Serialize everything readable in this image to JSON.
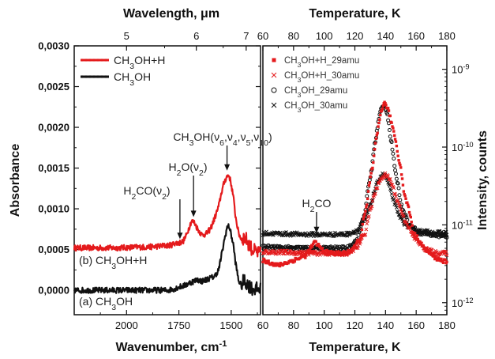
{
  "chart_data": [
    {
      "type": "line",
      "x_axis_bottom": {
        "label": "Wavenumber, cm",
        "label_superscript": "-1",
        "range": [
          2250,
          1360
        ],
        "ticks": [
          2000,
          1750,
          1500
        ],
        "tick_labels": [
          "2000",
          "1750",
          "1500"
        ]
      },
      "x_axis_top": {
        "label_prefix": "Wavelength, ",
        "label_unit": "μm",
        "ticks": [
          5,
          6,
          7
        ],
        "tick_labels": [
          "5",
          "6",
          "7"
        ]
      },
      "y_axis": {
        "label": "Absorbance",
        "range": [
          -0.0003,
          0.003
        ],
        "ticks": [
          0.0,
          0.0005,
          0.001,
          0.0015,
          0.002,
          0.0025,
          0.003
        ],
        "tick_labels": [
          "0,0000",
          "0,0005",
          "0,0010",
          "0,0015",
          "0,0020",
          "0,0025",
          "0,0030"
        ]
      },
      "legend": {
        "placement": "top-left",
        "entries": [
          {
            "base": "CH",
            "sub": "3",
            "rest": "OH+H",
            "color": "#e41a1c"
          },
          {
            "base": "CH",
            "sub": "3",
            "rest": "OH",
            "color": "#111111"
          }
        ]
      },
      "series": [
        {
          "name": "CH3OH+H",
          "color": "#e41a1c",
          "x": [
            2250,
            2150,
            2050,
            1950,
            1900,
            1850,
            1800,
            1780,
            1770,
            1750,
            1730,
            1715,
            1700,
            1690,
            1675,
            1660,
            1640,
            1620,
            1600,
            1580,
            1560,
            1545,
            1530,
            1520,
            1510,
            1500,
            1490,
            1480,
            1465,
            1450,
            1440,
            1430,
            1400,
            1370
          ],
          "y": [
            0.00052,
            0.00052,
            0.00052,
            0.00053,
            0.00053,
            0.00054,
            0.00055,
            0.00056,
            0.00058,
            0.00058,
            0.0006,
            0.00067,
            0.00078,
            0.00085,
            0.00083,
            0.00075,
            0.00068,
            0.00069,
            0.00075,
            0.00088,
            0.00103,
            0.00122,
            0.00135,
            0.0014,
            0.00141,
            0.0013,
            0.00115,
            0.00092,
            0.0007,
            0.00062,
            0.00065,
            0.00063,
            0.0005,
            0.00045
          ]
        },
        {
          "name": "CH3OH",
          "color": "#111111",
          "x": [
            2250,
            2150,
            2050,
            1950,
            1900,
            1850,
            1800,
            1770,
            1750,
            1720,
            1700,
            1680,
            1660,
            1640,
            1620,
            1600,
            1580,
            1560,
            1545,
            1530,
            1520,
            1510,
            1500,
            1490,
            1480,
            1465,
            1450,
            1440,
            1430,
            1400,
            1370
          ],
          "y": [
            0.0,
            0.0,
            0.0,
            0.0,
            0.0,
            0.0,
            0.0,
            2e-05,
            4e-05,
            6e-05,
            9e-05,
            0.00011,
            0.00013,
            0.00011,
            0.00013,
            0.00015,
            0.00017,
            0.00025,
            0.00045,
            0.00065,
            0.00077,
            0.00079,
            0.00068,
            0.00056,
            0.00035,
            0.00012,
            5e-05,
            0.00012,
            0.0001,
            2e-05,
            1e-05
          ]
        }
      ],
      "annotations": [
        {
          "parts": [
            [
              "t",
              "CH"
            ],
            [
              "sub",
              "3"
            ],
            [
              "t",
              "OH("
            ],
            [
              "t",
              "ν"
            ],
            [
              "sub",
              "6"
            ],
            [
              "t",
              ","
            ],
            [
              "t",
              "ν"
            ],
            [
              "sub",
              "4"
            ],
            [
              "t",
              ","
            ],
            [
              "t",
              "ν"
            ],
            [
              "sub",
              "5"
            ],
            [
              "t",
              ","
            ],
            [
              "t",
              "ν"
            ],
            [
              "sub",
              "10"
            ],
            [
              "t",
              ")"
            ]
          ],
          "x": 1520,
          "arrow_to_y": 0.00145
        },
        {
          "parts": [
            [
              "t",
              "H"
            ],
            [
              "sub",
              "2"
            ],
            [
              "t",
              "O("
            ],
            [
              "t",
              "ν"
            ],
            [
              "sub",
              "2"
            ],
            [
              "t",
              ")"
            ]
          ],
          "x": 1680,
          "arrow_to_y": 0.00088
        },
        {
          "parts": [
            [
              "t",
              "H"
            ],
            [
              "sub",
              "2"
            ],
            [
              "t",
              "CO("
            ],
            [
              "t",
              "ν"
            ],
            [
              "sub",
              "2"
            ],
            [
              "t",
              ")"
            ]
          ],
          "x": 1745,
          "arrow_to_y": 0.00061
        }
      ],
      "curve_labels": [
        {
          "parts": [
            [
              "t",
              "(b) CH"
            ],
            [
              "sub",
              "3"
            ],
            [
              "t",
              "OH+H"
            ]
          ],
          "series": "CH3OH+H"
        },
        {
          "parts": [
            [
              "t",
              "(a) CH"
            ],
            [
              "sub",
              "3"
            ],
            [
              "t",
              "OH"
            ]
          ],
          "series": "CH3OH"
        }
      ]
    },
    {
      "type": "scatter",
      "x_axis_bottom": {
        "label": "Temperature, K",
        "range": [
          60,
          180
        ],
        "ticks": [
          60,
          80,
          100,
          120,
          140,
          160,
          180
        ],
        "tick_labels": [
          "60",
          "80",
          "100",
          "120",
          "140",
          "160",
          "180"
        ]
      },
      "x_axis_top": {
        "label": "Temperature, K",
        "ticks": [
          60,
          80,
          100,
          120,
          140,
          160,
          180
        ],
        "tick_labels": [
          "60",
          "80",
          "100",
          "120",
          "140",
          "160",
          "180"
        ]
      },
      "y_axis": {
        "label": "Intensity, counts",
        "scale": "log",
        "range": [
          7e-13,
          2e-09
        ],
        "ticks": [
          1e-12,
          1e-11,
          1e-10,
          1e-09
        ],
        "tick_labels": [
          [
            "10",
            "-12"
          ],
          [
            "10",
            "-11"
          ],
          [
            "10",
            "-10"
          ],
          [
            "10",
            "-9"
          ]
        ]
      },
      "legend": {
        "placement": "top-left",
        "entries": [
          {
            "label": "CH3OH+H_29amu",
            "parts": [
              [
                "t",
                "CH"
              ],
              [
                "sub",
                "3"
              ],
              [
                "t",
                "OH+H_29amu"
              ]
            ],
            "marker": "filled-square",
            "color": "#e41a1c"
          },
          {
            "label": "CH3OH+H_30amu",
            "parts": [
              [
                "t",
                "CH"
              ],
              [
                "sub",
                "3"
              ],
              [
                "t",
                "OH+H_30amu"
              ]
            ],
            "marker": "cross",
            "color": "#e41a1c"
          },
          {
            "label": "CH3OH_29amu",
            "parts": [
              [
                "t",
                "CH"
              ],
              [
                "sub",
                "3"
              ],
              [
                "t",
                "OH_29amu"
              ]
            ],
            "marker": "open-circle",
            "color": "#111111"
          },
          {
            "label": "CH3OH_30amu",
            "parts": [
              [
                "t",
                "CH"
              ],
              [
                "sub",
                "3"
              ],
              [
                "t",
                "OH_30amu"
              ]
            ],
            "marker": "cross",
            "color": "#111111"
          }
        ]
      },
      "series": [
        {
          "name": "CH3OH+H_29amu",
          "color": "#e41a1c",
          "marker": "filled-square",
          "x": [
            60,
            70,
            80,
            88,
            94,
            100,
            110,
            118,
            124,
            128,
            132,
            135,
            137,
            139,
            141,
            144,
            148,
            152,
            158,
            165,
            172,
            180
          ],
          "y": [
            3.5e-12,
            3e-12,
            3.5e-12,
            4e-12,
            6e-12,
            4.5e-12,
            4.2e-12,
            4.5e-12,
            7e-12,
            1.8e-11,
            6e-11,
            1.6e-10,
            2.8e-10,
            3.7e-10,
            3.3e-10,
            2e-10,
            8e-11,
            2.5e-11,
            8e-12,
            5e-12,
            3.8e-12,
            3.3e-12
          ]
        },
        {
          "name": "CH3OH+H_30amu",
          "color": "#e41a1c",
          "marker": "cross",
          "x": [
            60,
            80,
            100,
            115,
            122,
            127,
            131,
            135,
            138,
            140,
            143,
            147,
            152,
            158,
            165,
            172,
            180
          ],
          "y": [
            4.5e-12,
            4.4e-12,
            4.3e-12,
            4.3e-12,
            5.2e-12,
            8e-12,
            1.8e-11,
            3.2e-11,
            4.2e-11,
            4.4e-11,
            3.8e-11,
            2.2e-11,
            1.2e-11,
            7e-12,
            5e-12,
            4.4e-12,
            4.3e-12
          ]
        },
        {
          "name": "CH3OH_29amu",
          "color": "#111111",
          "marker": "open-circle",
          "x": [
            60,
            80,
            100,
            115,
            122,
            127,
            131,
            134,
            137,
            139,
            141,
            143,
            146,
            150,
            155,
            162,
            170,
            180
          ],
          "y": [
            5.2e-12,
            5e-12,
            5e-12,
            5e-12,
            6.5e-12,
            1.5e-11,
            5e-11,
            1.4e-10,
            3e-10,
            3.5e-10,
            2.8e-10,
            1.4e-10,
            5e-11,
            1.8e-11,
            1e-11,
            8e-12,
            7.5e-12,
            7e-12
          ]
        },
        {
          "name": "CH3OH_30amu",
          "color": "#111111",
          "marker": "cross",
          "x": [
            60,
            80,
            100,
            115,
            122,
            127,
            131,
            134,
            137,
            139,
            141,
            144,
            148,
            153,
            160,
            170,
            180
          ],
          "y": [
            7.8e-12,
            7.6e-12,
            7.5e-12,
            7.6e-12,
            8.5e-12,
            1.2e-11,
            2e-11,
            3.2e-11,
            4.3e-11,
            4.5e-11,
            3.8e-11,
            2.4e-11,
            1.4e-11,
            1e-11,
            8.5e-12,
            8e-12,
            7.8e-12
          ]
        }
      ],
      "annotations": [
        {
          "parts": [
            [
              "t",
              "H"
            ],
            [
              "sub",
              "2"
            ],
            [
              "t",
              "CO"
            ]
          ],
          "x": 95,
          "arrow_to_y": 6.5e-12
        }
      ]
    }
  ]
}
